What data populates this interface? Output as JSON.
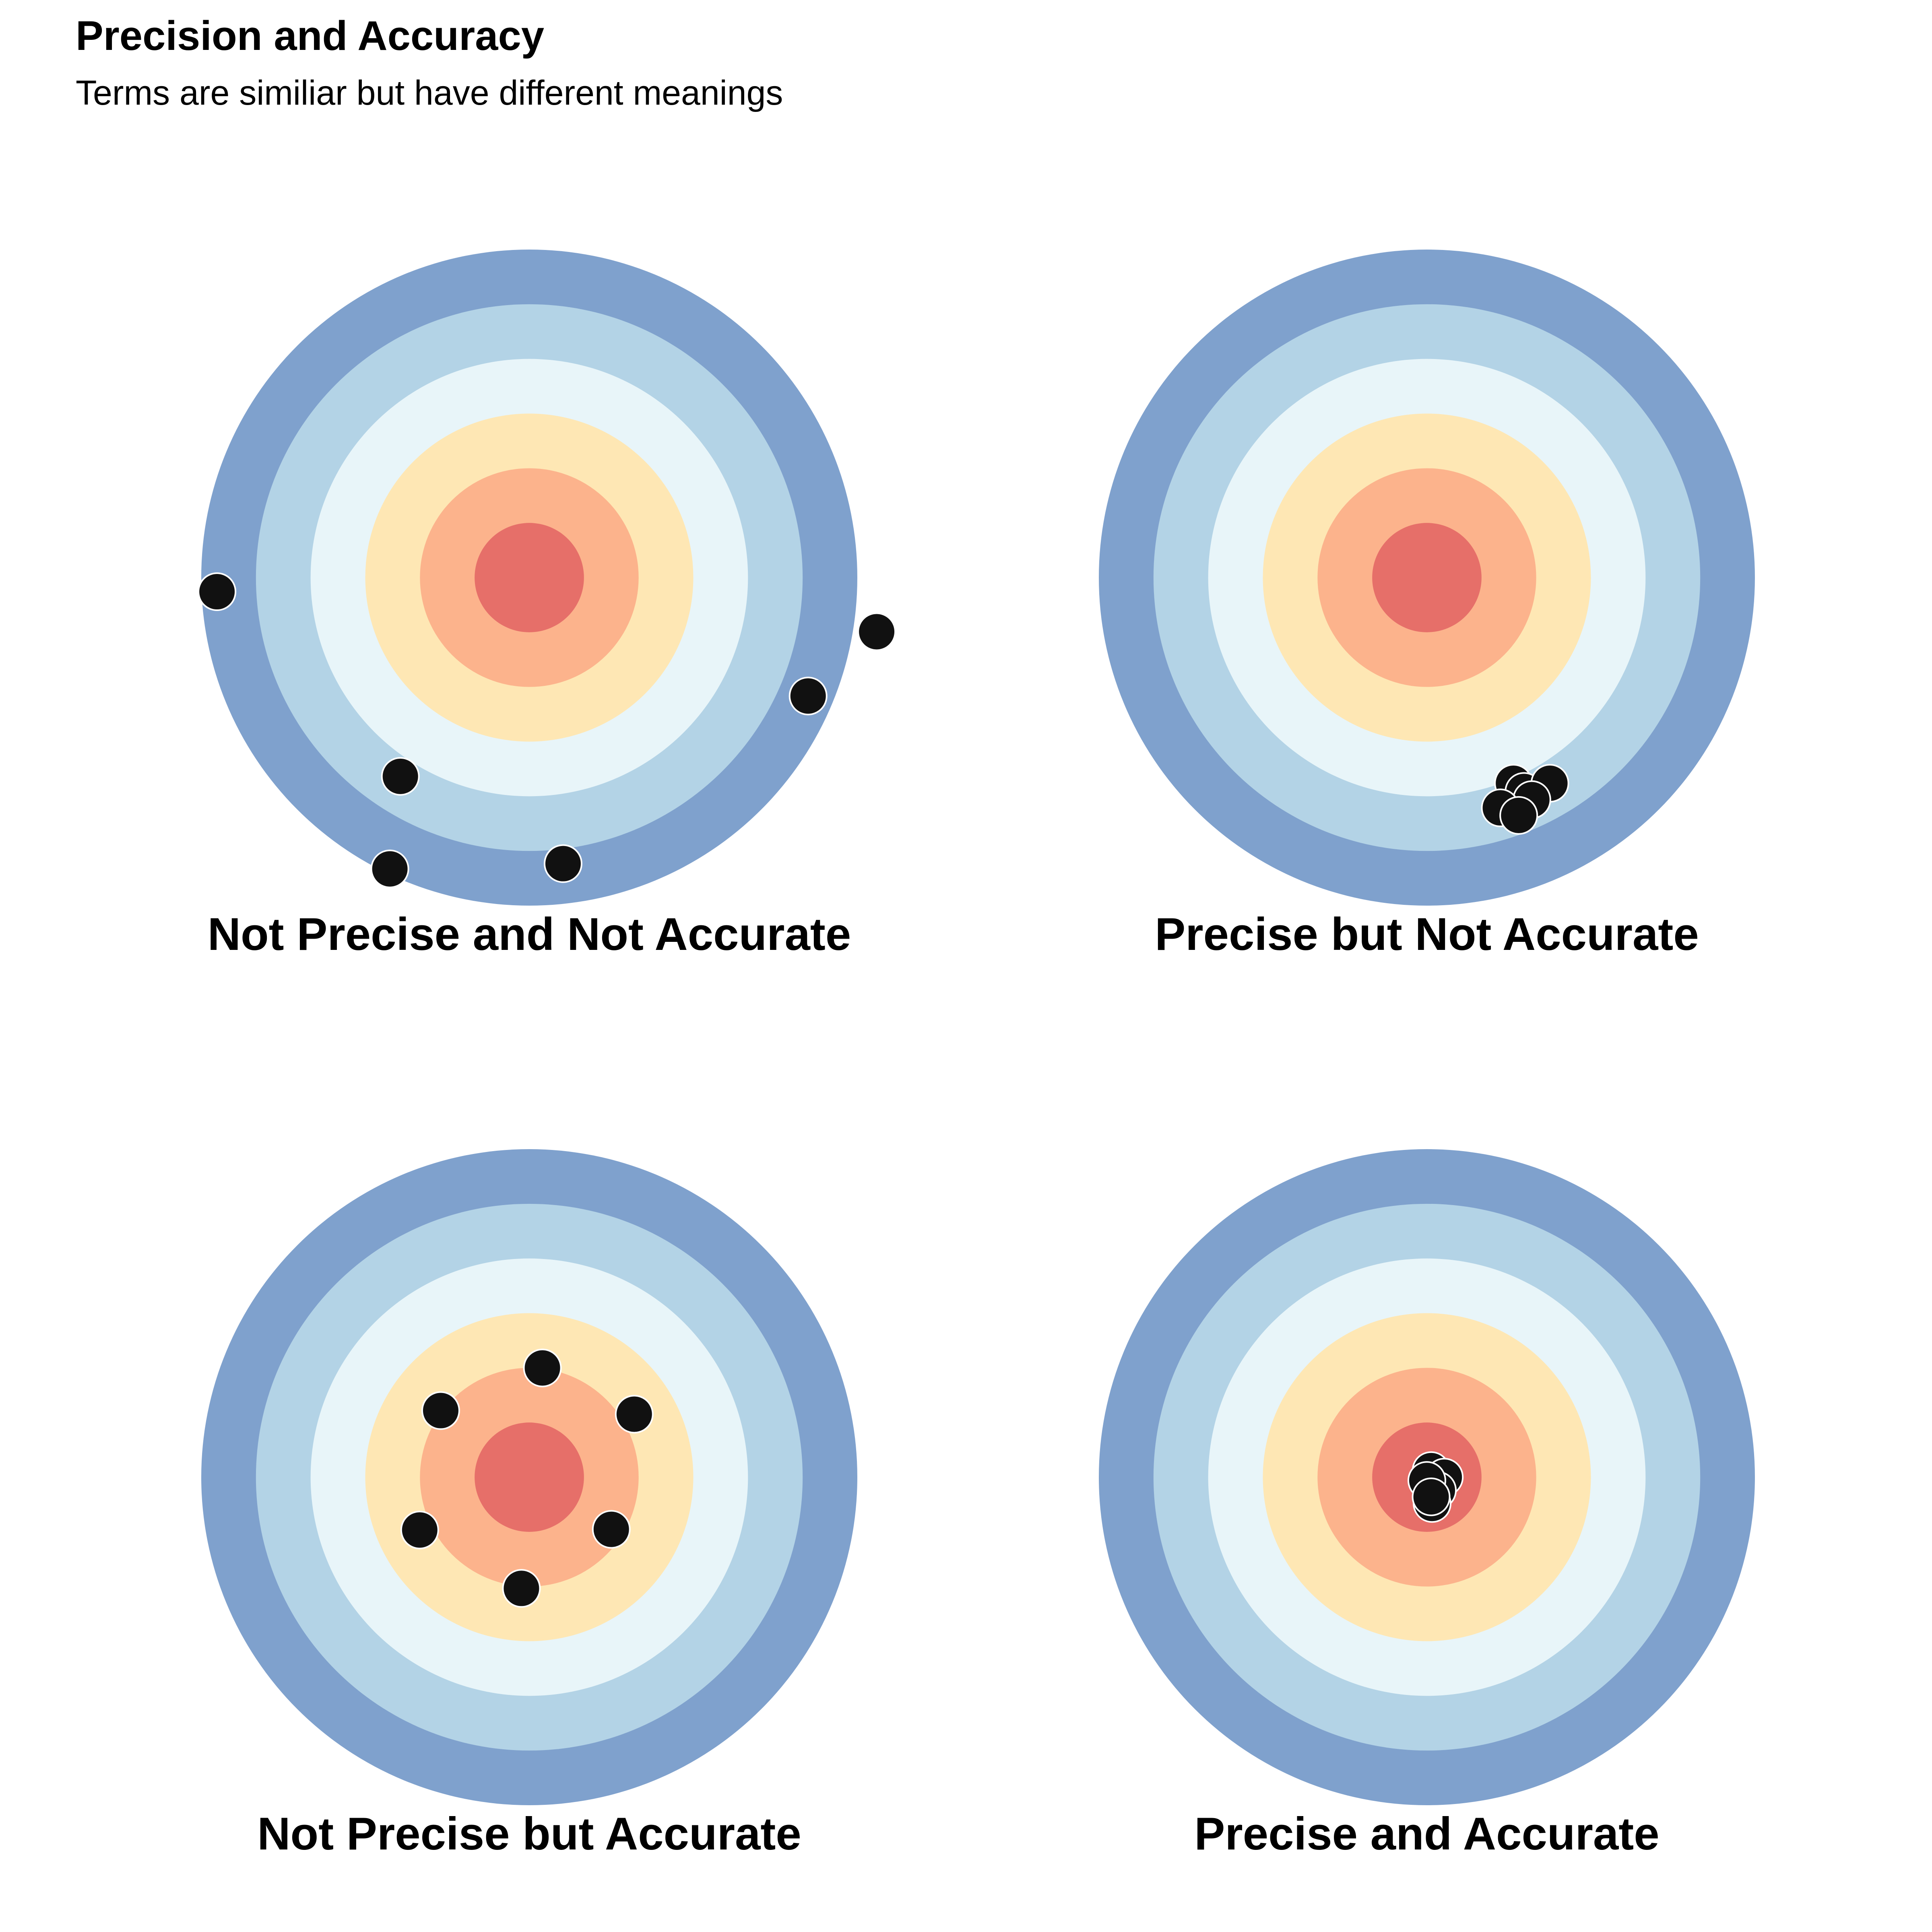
{
  "title": "Precision and Accuracy",
  "subtitle": "Terms are similiar but have different meanings",
  "ring_colors": [
    "#7fa1cd",
    "#b3d3e6",
    "#e8f5f9",
    "#fee7b4",
    "#fcb38c",
    "#e66f69"
  ],
  "shot_color": "#111111",
  "panels": [
    {
      "label": "Not Precise and Not Accurate",
      "shots": [
        [
          -0.952,
          -0.043
        ],
        [
          1.059,
          -0.165
        ],
        [
          0.85,
          -0.361
        ],
        [
          -0.393,
          -0.606
        ],
        [
          0.103,
          -0.872
        ],
        [
          -0.425,
          -0.888
        ]
      ]
    },
    {
      "label": "Precise but Not Accurate",
      "shots": [
        [
          0.264,
          -0.627
        ],
        [
          0.296,
          -0.652
        ],
        [
          0.375,
          -0.627
        ],
        [
          0.32,
          -0.677
        ],
        [
          0.224,
          -0.702
        ],
        [
          0.28,
          -0.725
        ]
      ]
    },
    {
      "label": "Not Precise but Accurate",
      "shots": [
        [
          0.04,
          0.333
        ],
        [
          -0.27,
          0.203
        ],
        [
          0.32,
          0.192
        ],
        [
          -0.334,
          -0.161
        ],
        [
          0.25,
          -0.159
        ],
        [
          -0.024,
          -0.339
        ]
      ]
    },
    {
      "label": "Precise and Accurate",
      "shots": [
        [
          0.013,
          0.02
        ],
        [
          0.053,
          0.0
        ],
        [
          0.032,
          -0.04
        ],
        [
          0.0,
          -0.01
        ],
        [
          0.016,
          -0.08
        ],
        [
          0.013,
          -0.06
        ]
      ]
    }
  ]
}
